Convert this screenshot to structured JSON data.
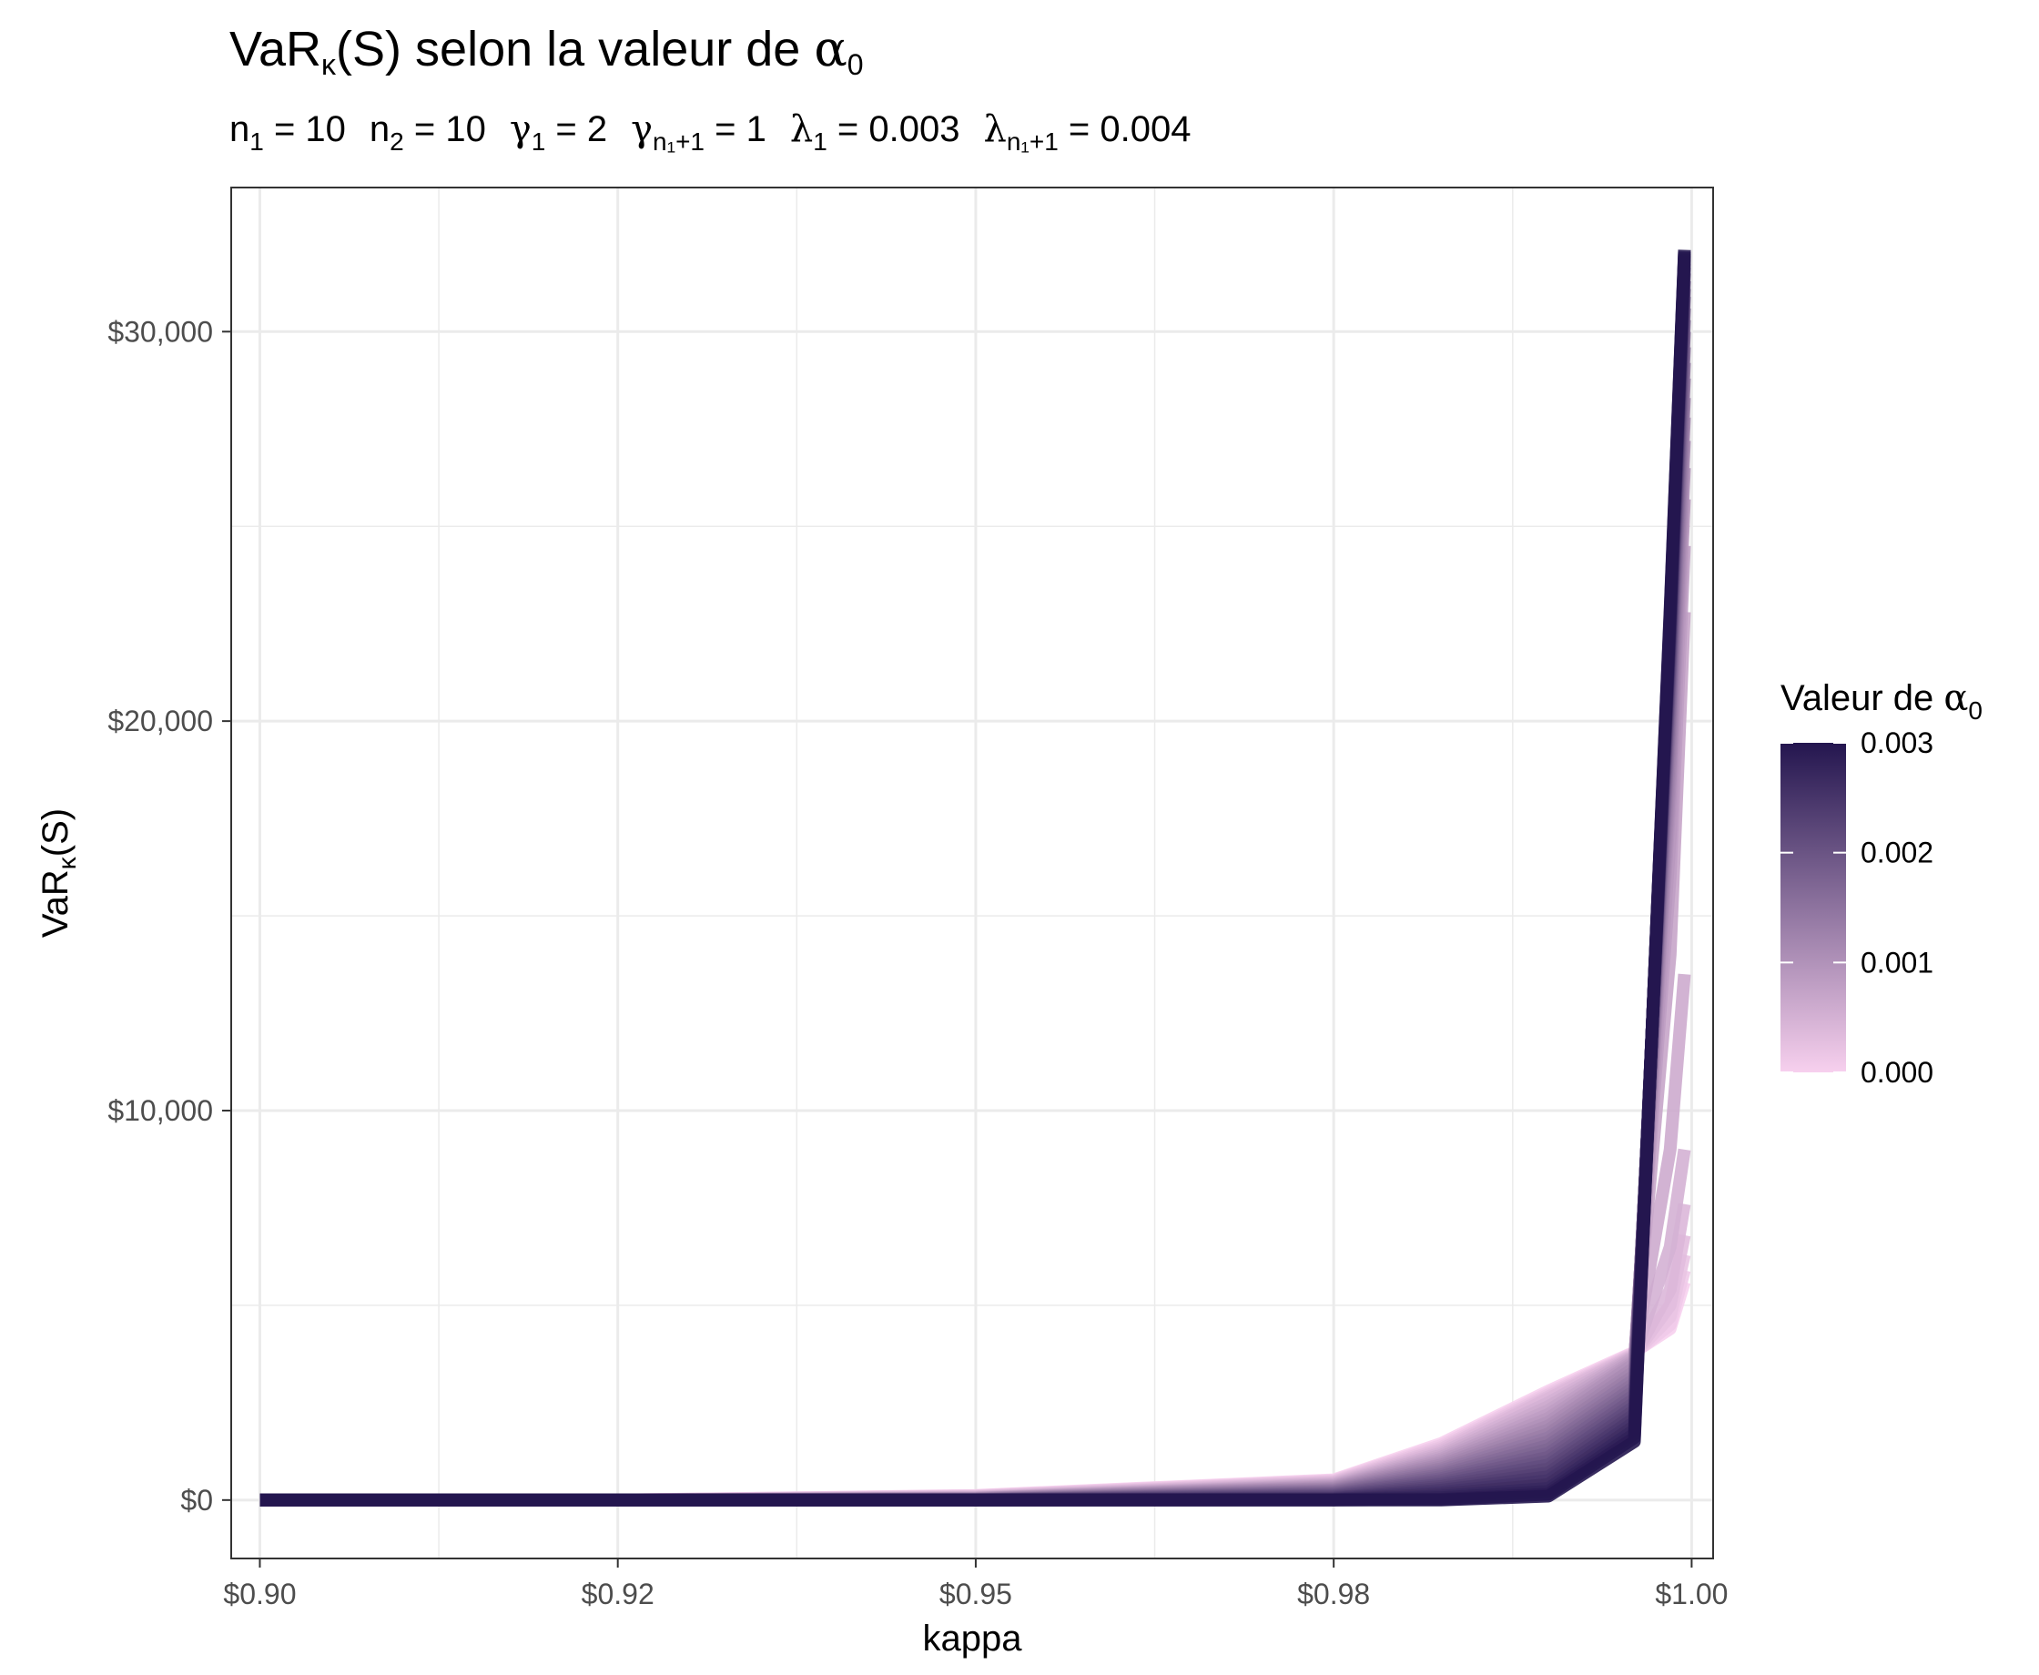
{
  "chart_data": {
    "type": "line",
    "title": {
      "main": "VaR",
      "sub": "κ",
      "paren": "(S)",
      "rest": " selon la valeur de ",
      "greek": "α",
      "greek_sub": "0"
    },
    "subtitle": [
      {
        "base": "n",
        "sub": "1",
        "eq": " = 10"
      },
      {
        "base": "n",
        "sub": "2",
        "eq": " = 10"
      },
      {
        "base": "γ",
        "sub": "1",
        "eq": " = 2"
      },
      {
        "base": "γ",
        "sub": "n₁+1",
        "eq": " = 1"
      },
      {
        "base": "λ",
        "sub": "1",
        "eq": " = 0.003"
      },
      {
        "base": "λ",
        "sub": "n₁+1",
        "eq": " = 0.004"
      }
    ],
    "xlabel": "kappa",
    "ylabel": {
      "main": "VaR",
      "sub": "κ",
      "rest": "(S)"
    },
    "xlim": [
      0.898,
      1.0015
    ],
    "ylim": [
      -1500,
      33700
    ],
    "x_ticks": [
      {
        "value": 0.9,
        "label": "$0.90"
      },
      {
        "value": 0.925,
        "label": "$0.92"
      },
      {
        "value": 0.95,
        "label": "$0.95"
      },
      {
        "value": 0.975,
        "label": "$0.98"
      },
      {
        "value": 1.0,
        "label": "$1.00"
      }
    ],
    "y_ticks": [
      {
        "value": 0,
        "label": "$0"
      },
      {
        "value": 10000,
        "label": "$10,000"
      },
      {
        "value": 20000,
        "label": "$20,000"
      },
      {
        "value": 30000,
        "label": "$30,000"
      }
    ],
    "grid": true,
    "legend": {
      "title": {
        "main": "Valeur de ",
        "greek": "α",
        "sub": "0"
      },
      "placement": "right",
      "range": [
        0,
        0.003
      ],
      "ticks": [
        {
          "value": 0.003,
          "label": "0.003"
        },
        {
          "value": 0.002,
          "label": "0.002"
        },
        {
          "value": 0.001,
          "label": "0.001"
        },
        {
          "value": 0.0,
          "label": "0.000"
        }
      ],
      "color_low": "#f7d0ee",
      "color_high": "#24164f"
    },
    "x": [
      0.9,
      0.925,
      0.95,
      0.975,
      0.9825,
      0.99,
      0.996,
      0.9985,
      0.9995
    ],
    "series": [
      {
        "alpha0": 0.0,
        "values": [
          0,
          0,
          120,
          520,
          1450,
          2800,
          3800,
          4400,
          5600
        ]
      },
      {
        "alpha0": 0.0001,
        "values": [
          0,
          0,
          110,
          500,
          1400,
          2750,
          3780,
          4500,
          5900
        ]
      },
      {
        "alpha0": 0.0002,
        "values": [
          0,
          0,
          100,
          480,
          1350,
          2700,
          3760,
          4700,
          6300
        ]
      },
      {
        "alpha0": 0.0003,
        "values": [
          0,
          0,
          90,
          460,
          1300,
          2650,
          3740,
          5000,
          6800
        ]
      },
      {
        "alpha0": 0.0004,
        "values": [
          0,
          0,
          80,
          440,
          1250,
          2600,
          3720,
          5400,
          7600
        ]
      },
      {
        "alpha0": 0.0005,
        "values": [
          0,
          0,
          70,
          420,
          1200,
          2500,
          3700,
          6500,
          9000
        ]
      },
      {
        "alpha0": 0.0006,
        "values": [
          0,
          0,
          60,
          400,
          1150,
          2400,
          3680,
          9000,
          13500
        ]
      },
      {
        "alpha0": 0.0007,
        "values": [
          0,
          0,
          55,
          380,
          1100,
          2300,
          3650,
          14000,
          22800
        ]
      },
      {
        "alpha0": 0.0008,
        "values": [
          0,
          0,
          50,
          360,
          1050,
          2200,
          3600,
          16000,
          24500
        ]
      },
      {
        "alpha0": 0.0009,
        "values": [
          0,
          0,
          45,
          340,
          1000,
          2100,
          3550,
          17000,
          25700
        ]
      },
      {
        "alpha0": 0.001,
        "values": [
          0,
          0,
          40,
          320,
          950,
          2000,
          3500,
          18000,
          26500
        ]
      },
      {
        "alpha0": 0.0011,
        "values": [
          0,
          0,
          35,
          300,
          900,
          1900,
          3400,
          18500,
          27200
        ]
      },
      {
        "alpha0": 0.0012,
        "values": [
          0,
          0,
          30,
          280,
          850,
          1800,
          3300,
          19000,
          27800
        ]
      },
      {
        "alpha0": 0.0013,
        "values": [
          0,
          0,
          25,
          260,
          800,
          1700,
          3200,
          19500,
          28300
        ]
      },
      {
        "alpha0": 0.0014,
        "values": [
          0,
          0,
          20,
          240,
          750,
          1600,
          3100,
          20000,
          28800
        ]
      },
      {
        "alpha0": 0.0015,
        "values": [
          0,
          0,
          15,
          220,
          700,
          1500,
          3000,
          20300,
          29200
        ]
      },
      {
        "alpha0": 0.0016,
        "values": [
          0,
          0,
          12,
          200,
          650,
          1400,
          2900,
          20600,
          29600
        ]
      },
      {
        "alpha0": 0.0017,
        "values": [
          0,
          0,
          10,
          180,
          600,
          1300,
          2800,
          20900,
          30000
        ]
      },
      {
        "alpha0": 0.0018,
        "values": [
          0,
          0,
          8,
          160,
          550,
          1200,
          2700,
          21200,
          30300
        ]
      },
      {
        "alpha0": 0.0019,
        "values": [
          0,
          0,
          6,
          140,
          500,
          1100,
          2600,
          21400,
          30600
        ]
      },
      {
        "alpha0": 0.002,
        "values": [
          0,
          0,
          5,
          120,
          450,
          1000,
          2500,
          21600,
          30900
        ]
      },
      {
        "alpha0": 0.0021,
        "values": [
          0,
          0,
          4,
          100,
          400,
          900,
          2400,
          21800,
          31100
        ]
      },
      {
        "alpha0": 0.0022,
        "values": [
          0,
          0,
          3,
          80,
          350,
          800,
          2300,
          22000,
          31300
        ]
      },
      {
        "alpha0": 0.0023,
        "values": [
          0,
          0,
          2,
          60,
          300,
          700,
          2200,
          22200,
          31500
        ]
      },
      {
        "alpha0": 0.0024,
        "values": [
          0,
          0,
          1,
          45,
          250,
          600,
          2100,
          22300,
          31650
        ]
      },
      {
        "alpha0": 0.0025,
        "values": [
          0,
          0,
          0,
          30,
          200,
          500,
          2000,
          22400,
          31750
        ]
      },
      {
        "alpha0": 0.0026,
        "values": [
          0,
          0,
          0,
          20,
          150,
          400,
          1900,
          22500,
          31850
        ]
      },
      {
        "alpha0": 0.0027,
        "values": [
          0,
          0,
          0,
          10,
          100,
          300,
          1800,
          22600,
          31950
        ]
      },
      {
        "alpha0": 0.0028,
        "values": [
          0,
          0,
          0,
          5,
          60,
          220,
          1700,
          22700,
          32000
        ]
      },
      {
        "alpha0": 0.0029,
        "values": [
          0,
          0,
          0,
          0,
          20,
          150,
          1600,
          22800,
          32050
        ]
      },
      {
        "alpha0": 0.003,
        "values": [
          0,
          0,
          0,
          0,
          0,
          100,
          1500,
          22900,
          32100
        ]
      }
    ]
  }
}
